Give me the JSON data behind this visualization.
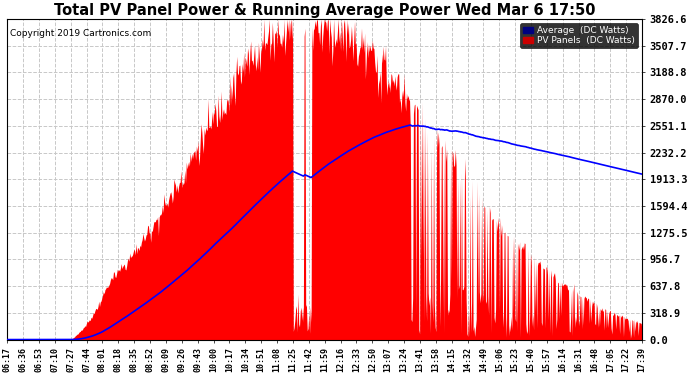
{
  "title": "Total PV Panel Power & Running Average Power Wed Mar 6 17:50",
  "copyright": "Copyright 2019 Cartronics.com",
  "legend_avg": "Average  (DC Watts)",
  "legend_pv": "PV Panels  (DC Watts)",
  "y_max": 3826.6,
  "y_ticks": [
    0.0,
    318.9,
    637.8,
    956.7,
    1275.5,
    1594.4,
    1913.3,
    2232.2,
    2551.1,
    2870.0,
    3188.8,
    3507.7,
    3826.6
  ],
  "x_labels": [
    "06:17",
    "06:36",
    "06:53",
    "07:10",
    "07:27",
    "07:44",
    "08:01",
    "08:18",
    "08:35",
    "08:52",
    "09:09",
    "09:26",
    "09:43",
    "10:00",
    "10:17",
    "10:34",
    "10:51",
    "11:08",
    "11:25",
    "11:42",
    "11:59",
    "12:16",
    "12:33",
    "12:50",
    "13:07",
    "13:24",
    "13:41",
    "13:58",
    "14:15",
    "14:32",
    "14:49",
    "15:06",
    "15:23",
    "15:40",
    "15:57",
    "16:14",
    "16:31",
    "16:48",
    "17:05",
    "17:22",
    "17:39"
  ],
  "bg_color": "#ffffff",
  "plot_bg": "#ffffff",
  "grid_color": "#c8c8c8",
  "pv_color": "#ff0000",
  "avg_color": "#0000ff",
  "avg_label_bg": "#000080",
  "pv_label_bg": "#cc0000"
}
